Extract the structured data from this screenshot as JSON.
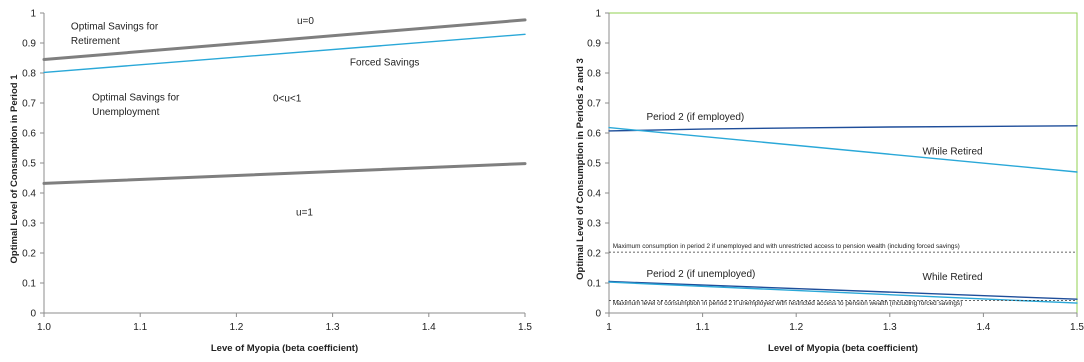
{
  "chart_data": [
    {
      "type": "line",
      "xlabel": "Leve of Myopia  (beta coefficient)",
      "ylabel": "Optimal Level of Consumption  in Period 1",
      "xlim": [
        1.0,
        1.5
      ],
      "ylim": [
        0,
        1
      ],
      "x_ticks": [
        "1.0",
        "1.1",
        "1.2",
        "1.3",
        "1.4",
        "1.5"
      ],
      "y_ticks": [
        "0",
        "0.1",
        "0.2",
        "0.3",
        "0.4",
        "0.5",
        "0.6",
        "0.7",
        "0.8",
        "0.9",
        "1"
      ],
      "grid": false,
      "series": [
        {
          "x": [
            1.0,
            1.5
          ],
          "y": [
            0.845,
            0.977
          ],
          "color": "#7f7f7f",
          "width": 3
        },
        {
          "x": [
            1.0,
            1.5
          ],
          "y": [
            0.802,
            0.929
          ],
          "color": "#2aa8d8",
          "width": 1.4
        },
        {
          "x": [
            1.0,
            1.5
          ],
          "y": [
            0.432,
            0.498
          ],
          "color": "#7f7f7f",
          "width": 3
        }
      ],
      "annotations": [
        {
          "text": "Optimal Savings for",
          "x": 1.028,
          "y": 0.945
        },
        {
          "text": "Retirement",
          "x": 1.028,
          "y": 0.897
        },
        {
          "text": "u=0",
          "x": 1.263,
          "y": 0.963
        },
        {
          "text": "Forced Savings",
          "x": 1.318,
          "y": 0.825
        },
        {
          "text": "Optimal Savings for",
          "x": 1.05,
          "y": 0.708
        },
        {
          "text": "Unemployment",
          "x": 1.05,
          "y": 0.66
        },
        {
          "text": "0<u<1",
          "x": 1.238,
          "y": 0.705
        },
        {
          "text": "u=1",
          "x": 1.262,
          "y": 0.325
        }
      ]
    },
    {
      "type": "line",
      "xlabel": "Level of Myopia  (beta coefficient)",
      "ylabel": "Optimal Level of Consumption  in Periods 2 and 3",
      "xlim": [
        1.0,
        1.5
      ],
      "ylim": [
        0,
        1
      ],
      "x_ticks": [
        "1",
        "1.1",
        "1.2",
        "1.3",
        "1.4",
        "1.5"
      ],
      "y_ticks": [
        "0",
        "0.1",
        "0.2",
        "0.3",
        "0.4",
        "0.5",
        "0.6",
        "0.7",
        "0.8",
        "0.9",
        "1"
      ],
      "grid": false,
      "plot_border_color": "#92d050",
      "series": [
        {
          "x": [
            1.0,
            1.1,
            1.2,
            1.3,
            1.4,
            1.5
          ],
          "y": [
            0.607,
            0.613,
            0.617,
            0.62,
            0.622,
            0.624
          ],
          "color": "#1f4e9a",
          "width": 1.4
        },
        {
          "x": [
            1.0,
            1.5
          ],
          "y": [
            0.618,
            0.47
          ],
          "color": "#2aa8d8",
          "width": 1.4
        },
        {
          "x": [
            1.0,
            1.5
          ],
          "y": [
            0.105,
            0.046
          ],
          "color": "#1f4e9a",
          "width": 1.4
        },
        {
          "x": [
            1.0,
            1.5
          ],
          "y": [
            0.103,
            0.033
          ],
          "color": "#2aa8d8",
          "width": 1.4
        },
        {
          "x": [
            1.0,
            1.5
          ],
          "y": [
            0.203,
            0.203
          ],
          "color": "#333333",
          "width": 0.8,
          "dashed": true
        },
        {
          "x": [
            1.0,
            1.5
          ],
          "y": [
            0.042,
            0.042
          ],
          "color": "#333333",
          "width": 0.8,
          "dashed": true
        }
      ],
      "annotations": [
        {
          "text": "Period 2 (if employed)",
          "x": 1.04,
          "y": 0.643,
          "size": "normal"
        },
        {
          "text": "While Retired",
          "x": 1.335,
          "y": 0.528,
          "size": "normal"
        },
        {
          "text": "Maximum consumption in period 2 if unemployed  and with unrestricted access to pension wealth  (including forced savings)",
          "x": 1.004,
          "y": 0.217,
          "size": "small"
        },
        {
          "text": "Period 2 (if unemployed)",
          "x": 1.04,
          "y": 0.12,
          "size": "normal"
        },
        {
          "text": "While Retired",
          "x": 1.335,
          "y": 0.11,
          "size": "normal"
        },
        {
          "text": "Maximum level of consumption in period 2 if unemployed with restricted access to pension wealth  (including forced savings)",
          "x": 1.004,
          "y": 0.026,
          "size": "small"
        }
      ]
    }
  ]
}
